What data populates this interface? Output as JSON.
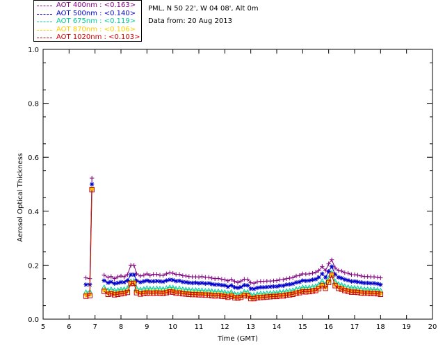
{
  "chart_data": {
    "type": "scatter",
    "xlabel": "Time (GMT)",
    "ylabel": "Aerosol Optical Thickness",
    "xlim": [
      5,
      20
    ],
    "ylim": [
      0.0,
      1.0
    ],
    "xticks": [
      "5",
      "6",
      "7",
      "8",
      "9",
      "10",
      "11",
      "12",
      "13",
      "14",
      "15",
      "16",
      "17",
      "18",
      "19",
      "20"
    ],
    "yticks": [
      "0.0",
      "0.2",
      "0.4",
      "0.6",
      "0.8",
      "1.0"
    ],
    "x": [
      6.65,
      6.8,
      6.88,
      7.35,
      7.5,
      7.62,
      7.75,
      7.88,
      8.0,
      8.12,
      8.25,
      8.38,
      8.5,
      8.6,
      8.75,
      8.88,
      9.0,
      9.12,
      9.25,
      9.38,
      9.5,
      9.62,
      9.75,
      9.88,
      10.0,
      10.12,
      10.25,
      10.38,
      10.5,
      10.62,
      10.75,
      10.88,
      11.0,
      11.12,
      11.25,
      11.38,
      11.5,
      11.62,
      11.75,
      11.88,
      12.0,
      12.12,
      12.25,
      12.38,
      12.5,
      12.62,
      12.75,
      12.88,
      13.0,
      13.12,
      13.25,
      13.38,
      13.5,
      13.62,
      13.75,
      13.88,
      14.0,
      14.12,
      14.25,
      14.38,
      14.5,
      14.62,
      14.75,
      14.88,
      15.0,
      15.12,
      15.25,
      15.38,
      15.5,
      15.62,
      15.75,
      15.88,
      16.0,
      16.12,
      16.25,
      16.38,
      16.5,
      16.62,
      16.75,
      16.88,
      17.0,
      17.12,
      17.25,
      17.38,
      17.5,
      17.62,
      17.75,
      17.88,
      18.0
    ],
    "series": [
      {
        "name": "AOT  400nm : <0.163>",
        "color": "#800080",
        "marker": "plus",
        "values": [
          0.153,
          0.15,
          0.523,
          0.163,
          0.155,
          0.158,
          0.15,
          0.157,
          0.16,
          0.157,
          0.165,
          0.2,
          0.2,
          0.168,
          0.16,
          0.163,
          0.168,
          0.162,
          0.166,
          0.166,
          0.163,
          0.162,
          0.168,
          0.172,
          0.17,
          0.166,
          0.166,
          0.161,
          0.16,
          0.158,
          0.157,
          0.157,
          0.156,
          0.158,
          0.155,
          0.155,
          0.152,
          0.15,
          0.151,
          0.148,
          0.146,
          0.142,
          0.147,
          0.14,
          0.136,
          0.141,
          0.148,
          0.147,
          0.135,
          0.133,
          0.138,
          0.14,
          0.14,
          0.141,
          0.141,
          0.142,
          0.143,
          0.146,
          0.146,
          0.15,
          0.152,
          0.154,
          0.16,
          0.162,
          0.168,
          0.167,
          0.168,
          0.17,
          0.174,
          0.18,
          0.195,
          0.18,
          0.205,
          0.22,
          0.19,
          0.18,
          0.178,
          0.172,
          0.17,
          0.165,
          0.165,
          0.163,
          0.16,
          0.158,
          0.158,
          0.157,
          0.157,
          0.155,
          0.153
        ]
      },
      {
        "name": "AOT  500nm : <0.140>",
        "color": "#0000cc",
        "marker": "star",
        "values": [
          0.128,
          0.128,
          0.5,
          0.143,
          0.135,
          0.138,
          0.132,
          0.134,
          0.137,
          0.137,
          0.143,
          0.165,
          0.165,
          0.142,
          0.137,
          0.14,
          0.143,
          0.14,
          0.14,
          0.141,
          0.14,
          0.139,
          0.143,
          0.146,
          0.145,
          0.141,
          0.142,
          0.138,
          0.137,
          0.135,
          0.134,
          0.135,
          0.133,
          0.134,
          0.132,
          0.133,
          0.13,
          0.128,
          0.128,
          0.126,
          0.125,
          0.12,
          0.125,
          0.118,
          0.116,
          0.119,
          0.126,
          0.125,
          0.113,
          0.112,
          0.116,
          0.118,
          0.118,
          0.119,
          0.12,
          0.121,
          0.121,
          0.124,
          0.124,
          0.128,
          0.129,
          0.131,
          0.136,
          0.138,
          0.143,
          0.142,
          0.143,
          0.146,
          0.148,
          0.155,
          0.168,
          0.155,
          0.177,
          0.195,
          0.166,
          0.155,
          0.152,
          0.147,
          0.144,
          0.14,
          0.14,
          0.138,
          0.136,
          0.134,
          0.134,
          0.133,
          0.133,
          0.131,
          0.128
        ]
      },
      {
        "name": "AOT  675nm : <0.119>",
        "color": "#00cc99",
        "marker": "triangle",
        "values": [
          0.1,
          0.102,
          0.485,
          0.118,
          0.108,
          0.111,
          0.107,
          0.108,
          0.11,
          0.111,
          0.115,
          0.14,
          0.141,
          0.115,
          0.11,
          0.112,
          0.115,
          0.113,
          0.113,
          0.114,
          0.113,
          0.112,
          0.115,
          0.118,
          0.117,
          0.113,
          0.114,
          0.111,
          0.11,
          0.109,
          0.108,
          0.108,
          0.107,
          0.107,
          0.105,
          0.106,
          0.104,
          0.102,
          0.103,
          0.101,
          0.1,
          0.097,
          0.101,
          0.094,
          0.092,
          0.095,
          0.102,
          0.101,
          0.09,
          0.09,
          0.093,
          0.095,
          0.095,
          0.096,
          0.097,
          0.098,
          0.098,
          0.101,
          0.101,
          0.104,
          0.105,
          0.107,
          0.112,
          0.114,
          0.118,
          0.117,
          0.118,
          0.12,
          0.122,
          0.129,
          0.141,
          0.13,
          0.152,
          0.172,
          0.14,
          0.13,
          0.127,
          0.122,
          0.119,
          0.116,
          0.116,
          0.115,
          0.113,
          0.111,
          0.111,
          0.11,
          0.11,
          0.109,
          0.106
        ]
      },
      {
        "name": "AOT  870nm : <0.106>",
        "color": "#ffcc00",
        "marker": "diamond",
        "values": [
          0.09,
          0.092,
          0.483,
          0.108,
          0.097,
          0.099,
          0.095,
          0.097,
          0.099,
          0.1,
          0.104,
          0.135,
          0.136,
          0.103,
          0.098,
          0.1,
          0.102,
          0.101,
          0.101,
          0.102,
          0.101,
          0.1,
          0.103,
          0.106,
          0.105,
          0.101,
          0.102,
          0.099,
          0.098,
          0.097,
          0.096,
          0.096,
          0.095,
          0.095,
          0.094,
          0.094,
          0.092,
          0.091,
          0.092,
          0.09,
          0.089,
          0.086,
          0.09,
          0.083,
          0.082,
          0.085,
          0.091,
          0.09,
          0.08,
          0.08,
          0.083,
          0.084,
          0.085,
          0.086,
          0.087,
          0.088,
          0.088,
          0.09,
          0.09,
          0.093,
          0.094,
          0.096,
          0.1,
          0.102,
          0.106,
          0.105,
          0.106,
          0.108,
          0.11,
          0.117,
          0.128,
          0.118,
          0.14,
          0.166,
          0.128,
          0.118,
          0.115,
          0.11,
          0.107,
          0.104,
          0.104,
          0.103,
          0.101,
          0.1,
          0.1,
          0.099,
          0.099,
          0.098,
          0.096
        ]
      },
      {
        "name": "AOT 1020nm : <0.103>",
        "color": "#cc0000",
        "marker": "square",
        "values": [
          0.085,
          0.087,
          0.48,
          0.103,
          0.092,
          0.094,
          0.09,
          0.092,
          0.094,
          0.095,
          0.099,
          0.132,
          0.133,
          0.098,
          0.093,
          0.095,
          0.097,
          0.096,
          0.096,
          0.097,
          0.096,
          0.095,
          0.098,
          0.101,
          0.1,
          0.096,
          0.097,
          0.094,
          0.093,
          0.092,
          0.091,
          0.091,
          0.09,
          0.09,
          0.089,
          0.089,
          0.087,
          0.086,
          0.087,
          0.085,
          0.084,
          0.081,
          0.085,
          0.079,
          0.078,
          0.081,
          0.087,
          0.086,
          0.076,
          0.076,
          0.079,
          0.08,
          0.081,
          0.082,
          0.083,
          0.084,
          0.084,
          0.086,
          0.086,
          0.089,
          0.09,
          0.092,
          0.096,
          0.098,
          0.102,
          0.101,
          0.102,
          0.104,
          0.106,
          0.113,
          0.124,
          0.114,
          0.136,
          0.163,
          0.124,
          0.114,
          0.111,
          0.106,
          0.103,
          0.1,
          0.1,
          0.099,
          0.097,
          0.096,
          0.096,
          0.095,
          0.095,
          0.094,
          0.092
        ]
      }
    ],
    "legend": "top-left",
    "grid": false
  },
  "info": {
    "location": "PML, N 50 22', W 04 08', Alt 0m",
    "date": "Data from: 20 Aug 2013"
  }
}
